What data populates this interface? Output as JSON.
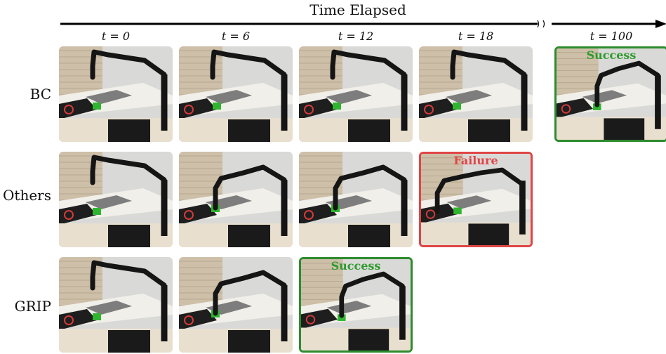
{
  "title": "Time Elapsed",
  "columns": [
    "t = 0",
    "t = 6",
    "t = 12",
    "t = 18",
    "t = 100"
  ],
  "rows": [
    "BC",
    "Others",
    "GRIP"
  ],
  "outcomes": {
    "success": "Success",
    "failure": "Failure"
  },
  "colors": {
    "success": "#2e8b2e",
    "failure": "#e04545",
    "arrow": "#000000"
  },
  "frames": [
    {
      "row": "BC",
      "col": "t = 0",
      "pose": "raised",
      "result": ""
    },
    {
      "row": "BC",
      "col": "t = 6",
      "pose": "raised",
      "result": ""
    },
    {
      "row": "BC",
      "col": "t = 12",
      "pose": "raised",
      "result": ""
    },
    {
      "row": "BC",
      "col": "t = 18",
      "pose": "raised",
      "result": ""
    },
    {
      "row": "BC",
      "col": "t = 100",
      "pose": "grasp",
      "result": "Success"
    },
    {
      "row": "Others",
      "col": "t = 0",
      "pose": "raised",
      "result": ""
    },
    {
      "row": "Others",
      "col": "t = 6",
      "pose": "lowered",
      "result": ""
    },
    {
      "row": "Others",
      "col": "t = 12",
      "pose": "lowered",
      "result": ""
    },
    {
      "row": "Others",
      "col": "t = 18",
      "pose": "missed",
      "result": "Failure"
    },
    {
      "row": "GRIP",
      "col": "t = 0",
      "pose": "raised",
      "result": ""
    },
    {
      "row": "GRIP",
      "col": "t = 6",
      "pose": "lowered",
      "result": ""
    },
    {
      "row": "GRIP",
      "col": "t = 12",
      "pose": "grasp",
      "result": "Success"
    }
  ]
}
